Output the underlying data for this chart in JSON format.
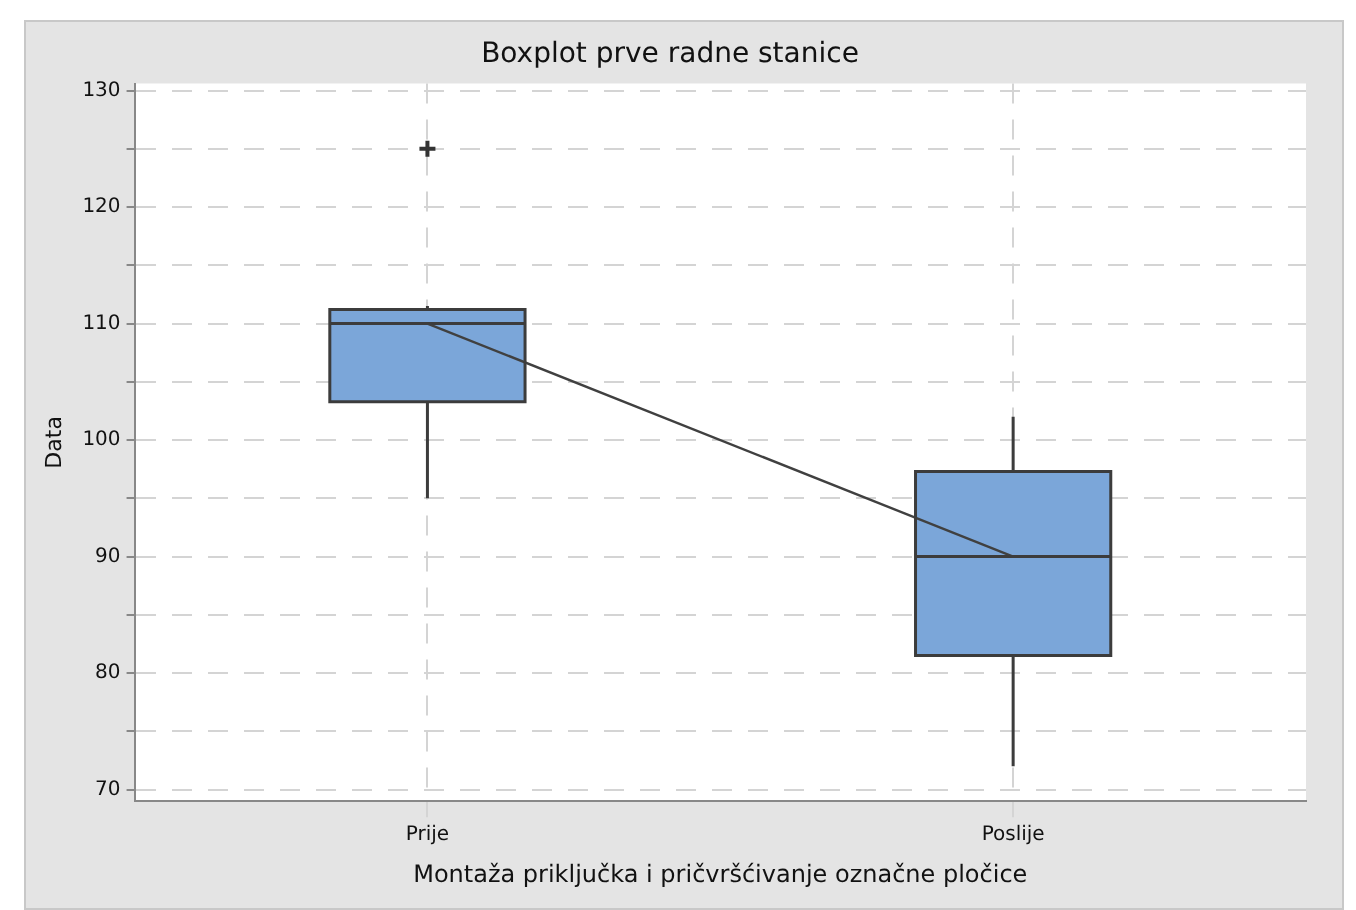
{
  "chart_data": {
    "type": "box",
    "title": "Boxplot prve radne stanice",
    "xlabel": "Montaža priključka i pričvršćivanje označne pločice",
    "ylabel": "Data",
    "categories": [
      "Prije",
      "Poslije"
    ],
    "series": [
      {
        "type": "box",
        "color": "#7ba6d9",
        "boxes": [
          {
            "low": 95,
            "q1": 103.3,
            "median": 110,
            "q3": 111.2,
            "high": 111.5,
            "outliers": [
              125
            ]
          },
          {
            "low": 72,
            "q1": 81.5,
            "median": 90,
            "q3": 97.3,
            "high": 102
          }
        ]
      },
      {
        "type": "line",
        "color": "#404040",
        "values": [
          110,
          90
        ]
      }
    ],
    "ylim": [
      69,
      130.6
    ],
    "yticks": [
      70,
      {
        "value": 75,
        "label": null
      },
      80,
      {
        "value": 85,
        "label": null
      },
      90,
      {
        "value": 95,
        "label": null
      },
      100,
      {
        "value": 105,
        "label": null
      },
      110,
      {
        "value": 115,
        "label": null
      },
      120,
      {
        "value": 125,
        "label": null
      },
      130
    ],
    "grid": true,
    "legend": false
  }
}
